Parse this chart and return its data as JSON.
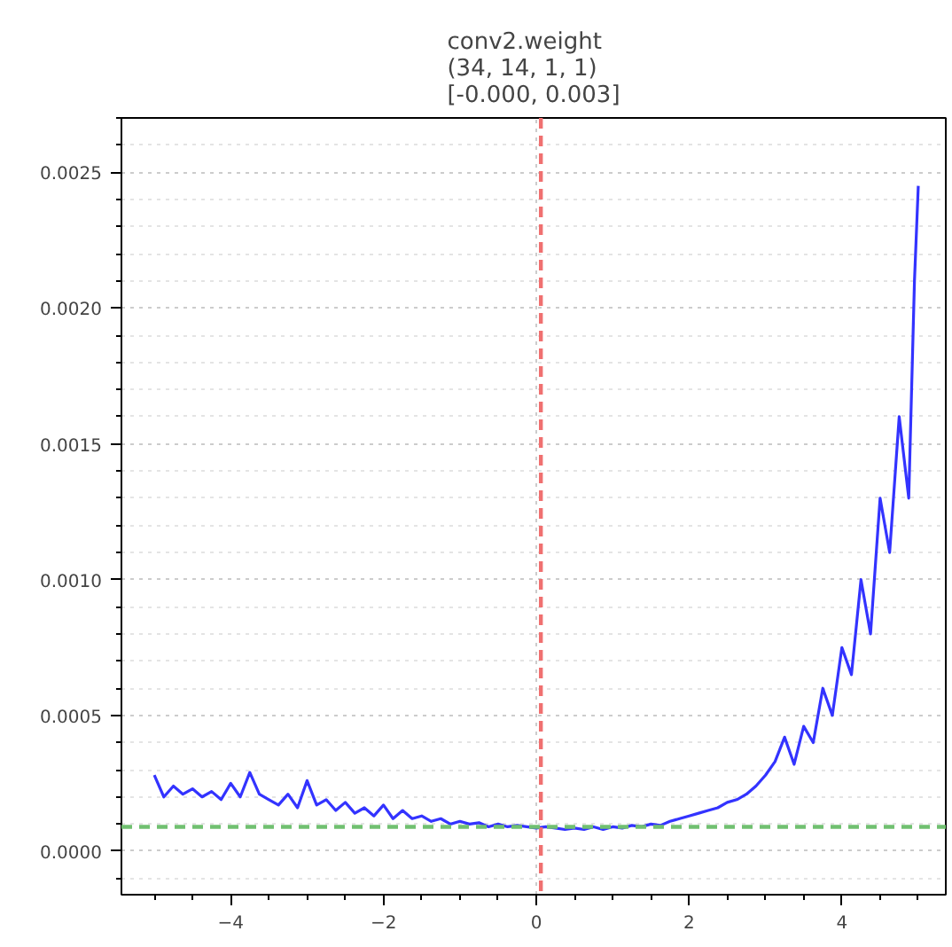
{
  "chart_data": {
    "type": "line",
    "title": "conv2.weight\n(34, 14, 1, 1)\n[-0.000, 0.003]",
    "x": [
      -5,
      -4.875,
      -4.75,
      -4.625,
      -4.5,
      -4.375,
      -4.25,
      -4.125,
      -4.0,
      -3.875,
      -3.75,
      -3.625,
      -3.5,
      -3.375,
      -3.25,
      -3.125,
      -3.0,
      -2.875,
      -2.75,
      -2.625,
      -2.5,
      -2.375,
      -2.25,
      -2.125,
      -2.0,
      -1.875,
      -1.75,
      -1.625,
      -1.5,
      -1.375,
      -1.25,
      -1.125,
      -1.0,
      -0.875,
      -0.75,
      -0.625,
      -0.5,
      -0.375,
      -0.25,
      -0.125,
      0,
      0.125,
      0.25,
      0.375,
      0.5,
      0.625,
      0.75,
      0.875,
      1.0,
      1.125,
      1.25,
      1.375,
      1.5,
      1.625,
      1.75,
      1.875,
      2.0,
      2.125,
      2.25,
      2.375,
      2.5,
      2.625,
      2.75,
      2.875,
      3.0,
      3.125,
      3.25,
      3.375,
      3.5,
      3.625,
      3.75,
      3.875,
      4.0,
      4.125,
      4.25,
      4.375,
      4.5,
      4.625,
      4.75,
      4.875,
      4.95,
      5.0
    ],
    "series": [
      {
        "color": "#3333ff",
        "values": [
          0.00028,
          0.0002,
          0.00024,
          0.00021,
          0.00023,
          0.0002,
          0.00022,
          0.00019,
          0.00025,
          0.0002,
          0.00029,
          0.00021,
          0.00019,
          0.00017,
          0.00021,
          0.00016,
          0.00026,
          0.00017,
          0.00019,
          0.00015,
          0.00018,
          0.00014,
          0.00016,
          0.00013,
          0.00017,
          0.00012,
          0.00015,
          0.00012,
          0.00013,
          0.00011,
          0.00012,
          0.0001,
          0.00011,
          0.0001,
          0.000105,
          9e-05,
          0.0001,
          9e-05,
          9.5e-05,
          9e-05,
          8.5e-05,
          9e-05,
          8.5e-05,
          8e-05,
          8.5e-05,
          8e-05,
          9e-05,
          8e-05,
          9e-05,
          8.5e-05,
          9.5e-05,
          9e-05,
          0.0001,
          9.5e-05,
          0.00011,
          0.00012,
          0.00013,
          0.00014,
          0.00015,
          0.00016,
          0.00018,
          0.00019,
          0.00021,
          0.00024,
          0.00028,
          0.00033,
          0.00042,
          0.00032,
          0.00046,
          0.0004,
          0.0006,
          0.0005,
          0.00075,
          0.00065,
          0.001,
          0.0008,
          0.0013,
          0.0011,
          0.0016,
          0.0013,
          0.0021,
          0.00245
        ]
      }
    ],
    "xlim": [
      -5.43,
      5.36
    ],
    "ylim": [
      -0.00016,
      0.0027
    ],
    "xticks": [
      {
        "value": -4,
        "label": "−4"
      },
      {
        "value": -2,
        "label": "−2"
      },
      0,
      2,
      4
    ],
    "yticks": [
      {
        "value": 0,
        "label": "0.0000"
      },
      {
        "value": 0.0005,
        "label": "0.0005"
      },
      {
        "value": 0.001,
        "label": "0.0010"
      },
      {
        "value": 0.0015,
        "label": "0.0015"
      },
      {
        "value": 0.002,
        "label": "0.0020"
      },
      {
        "value": 0.0025,
        "label": "0.0025"
      }
    ],
    "grid": true,
    "line_style": "solid",
    "ref_lines": [
      {
        "axis": "x",
        "value": 0.06,
        "color": "#f07070",
        "line_style": "dashed"
      },
      {
        "axis": "y",
        "value": 9e-05,
        "color": "#70c070",
        "line_style": "dashed"
      }
    ]
  }
}
